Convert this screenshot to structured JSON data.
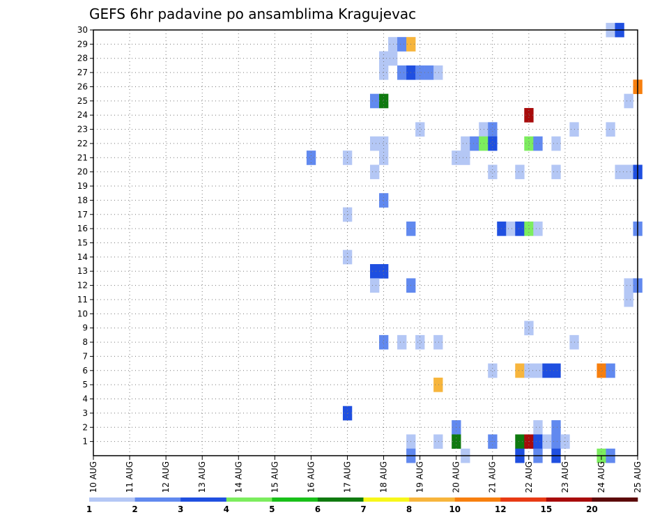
{
  "chart_data": {
    "type": "heatmap",
    "title": "GEFS 6hr padavine po ansamblima Kragujevac",
    "x_tick_labels": [
      "10 AUG",
      "11 AUG",
      "12 AUG",
      "13 AUG",
      "14 AUG",
      "15 AUG",
      "16 AUG",
      "17 AUG",
      "18 AUG",
      "19 AUG",
      "20 AUG",
      "21 AUG",
      "22 AUG",
      "23 AUG",
      "24 AUG",
      "25 AUG"
    ],
    "xlim_days": [
      0,
      15
    ],
    "y_tick_labels": [
      "1",
      "2",
      "3",
      "4",
      "5",
      "6",
      "7",
      "8",
      "9",
      "10",
      "11",
      "12",
      "13",
      "14",
      "15",
      "16",
      "17",
      "18",
      "19",
      "20",
      "21",
      "22",
      "23",
      "24",
      "25",
      "26",
      "27",
      "28",
      "29",
      "30"
    ],
    "ylim": [
      0,
      30
    ],
    "grid": true,
    "legend_placement": "bottom",
    "colorbar": {
      "colors": [
        "#b4c7f5",
        "#6189ef",
        "#1f4fe0",
        "#7ced5e",
        "#19c019",
        "#0f7a0f",
        "#f7f71a",
        "#f7b53c",
        "#f77f0e",
        "#e83a14",
        "#a80b0b",
        "#5c0a0a"
      ],
      "labels": [
        "1",
        "2",
        "3",
        "4",
        "5",
        "6",
        "7",
        "8",
        "10",
        "12",
        "15",
        "20"
      ]
    },
    "cells_note": "each cell = [day offset from 10 AUG, member, color class index]",
    "cells": [
      [
        14.25,
        30,
        0
      ],
      [
        14.5,
        30,
        2
      ],
      [
        8.25,
        29,
        0
      ],
      [
        8.5,
        29,
        1
      ],
      [
        8.75,
        29,
        7
      ],
      [
        8.0,
        28,
        0
      ],
      [
        8.25,
        28,
        0
      ],
      [
        8.0,
        27,
        0
      ],
      [
        8.5,
        27,
        1
      ],
      [
        8.75,
        27,
        2
      ],
      [
        9.0,
        27,
        1
      ],
      [
        9.25,
        27,
        1
      ],
      [
        9.5,
        27,
        0
      ],
      [
        15.0,
        26,
        8
      ],
      [
        7.75,
        25,
        1
      ],
      [
        8.0,
        25,
        5
      ],
      [
        14.75,
        25,
        0
      ],
      [
        12.0,
        24,
        10
      ],
      [
        9.0,
        23,
        0
      ],
      [
        10.75,
        23,
        0
      ],
      [
        11.0,
        23,
        1
      ],
      [
        13.25,
        23,
        0
      ],
      [
        14.25,
        23,
        0
      ],
      [
        7.75,
        22,
        0
      ],
      [
        8.0,
        22,
        0
      ],
      [
        10.25,
        22,
        0
      ],
      [
        10.5,
        22,
        1
      ],
      [
        10.75,
        22,
        3
      ],
      [
        11.0,
        22,
        2
      ],
      [
        12.0,
        22,
        3
      ],
      [
        12.25,
        22,
        1
      ],
      [
        12.75,
        22,
        0
      ],
      [
        6.0,
        21,
        1
      ],
      [
        7.0,
        21,
        0
      ],
      [
        8.0,
        21,
        0
      ],
      [
        10.0,
        21,
        0
      ],
      [
        10.25,
        21,
        0
      ],
      [
        7.75,
        20,
        0
      ],
      [
        11.0,
        20,
        0
      ],
      [
        11.75,
        20,
        0
      ],
      [
        12.75,
        20,
        0
      ],
      [
        14.5,
        20,
        0
      ],
      [
        14.75,
        20,
        0
      ],
      [
        15.0,
        20,
        2
      ],
      [
        8.0,
        18,
        1
      ],
      [
        7.0,
        17,
        0
      ],
      [
        8.75,
        16,
        1
      ],
      [
        11.25,
        16,
        2
      ],
      [
        11.5,
        16,
        0
      ],
      [
        11.75,
        16,
        2
      ],
      [
        12.0,
        16,
        3
      ],
      [
        12.25,
        16,
        0
      ],
      [
        15.0,
        16,
        1
      ],
      [
        7.0,
        14,
        0
      ],
      [
        7.75,
        13,
        2
      ],
      [
        8.0,
        13,
        2
      ],
      [
        7.75,
        12,
        0
      ],
      [
        8.75,
        12,
        1
      ],
      [
        14.75,
        12,
        0
      ],
      [
        15.0,
        12,
        1
      ],
      [
        14.75,
        11,
        0
      ],
      [
        12.0,
        9,
        0
      ],
      [
        8.0,
        8,
        1
      ],
      [
        8.5,
        8,
        0
      ],
      [
        9.0,
        8,
        0
      ],
      [
        9.5,
        8,
        0
      ],
      [
        13.25,
        8,
        0
      ],
      [
        11.0,
        6,
        0
      ],
      [
        11.75,
        6,
        7
      ],
      [
        12.0,
        6,
        0
      ],
      [
        12.25,
        6,
        0
      ],
      [
        12.5,
        6,
        2
      ],
      [
        12.75,
        6,
        2
      ],
      [
        14.0,
        6,
        8
      ],
      [
        14.25,
        6,
        1
      ],
      [
        9.5,
        5,
        7
      ],
      [
        7.0,
        3,
        2
      ],
      [
        10.0,
        2,
        1
      ],
      [
        12.25,
        2,
        0
      ],
      [
        12.75,
        2,
        1
      ],
      [
        8.75,
        1,
        0
      ],
      [
        9.5,
        1,
        0
      ],
      [
        10.0,
        1,
        5
      ],
      [
        11.0,
        1,
        1
      ],
      [
        11.75,
        1,
        5
      ],
      [
        12.0,
        1,
        10
      ],
      [
        12.25,
        1,
        2
      ],
      [
        12.5,
        1,
        0
      ],
      [
        12.75,
        1,
        1
      ],
      [
        13.0,
        1,
        0
      ],
      [
        8.75,
        0,
        1
      ],
      [
        10.25,
        0,
        0
      ],
      [
        11.75,
        0,
        2
      ],
      [
        12.25,
        0,
        1
      ],
      [
        12.75,
        0,
        2
      ],
      [
        14.0,
        0,
        3
      ],
      [
        14.25,
        0,
        1
      ]
    ]
  }
}
